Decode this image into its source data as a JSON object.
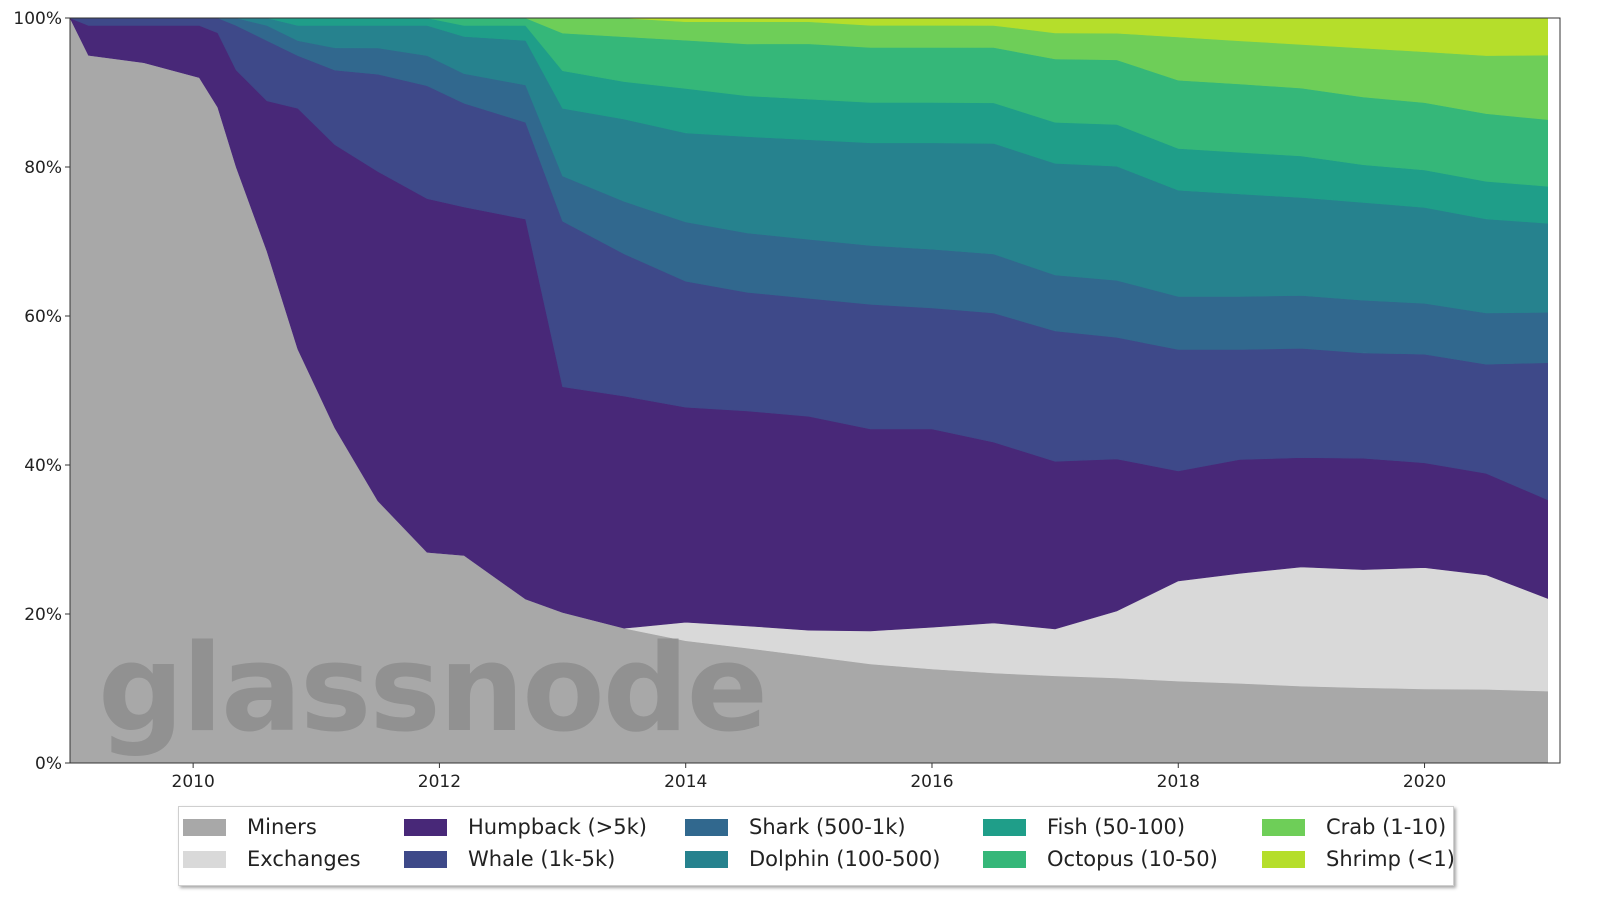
{
  "chart_data": {
    "type": "area",
    "stacked": "percent",
    "watermark": "glassnode",
    "x_ticks": [
      "2010",
      "2012",
      "2014",
      "2016",
      "2018",
      "2020"
    ],
    "y_ticks": [
      "0%",
      "20%",
      "40%",
      "60%",
      "80%",
      "100%"
    ],
    "ylim": [
      0,
      100
    ],
    "xlim": [
      2009.0,
      2021.1
    ],
    "legend_position": "bottom",
    "x": [
      2009.0,
      2009.15,
      2009.6,
      2010.05,
      2010.2,
      2010.35,
      2010.6,
      2010.85,
      2011.15,
      2011.5,
      2011.9,
      2012.2,
      2012.7,
      2013.0,
      2013.5,
      2014.0,
      2014.5,
      2015.0,
      2015.5,
      2016.0,
      2016.5,
      2017.0,
      2017.5,
      2018.0,
      2018.5,
      2019.0,
      2019.5,
      2020.0,
      2020.5,
      2021.0
    ],
    "series": [
      {
        "name": "Miners",
        "color": "#a8a8a8",
        "values": [
          97,
          95,
          94,
          92,
          88,
          80,
          68,
          55,
          45,
          35,
          28,
          28,
          22,
          20,
          18,
          16.5,
          15.5,
          14.5,
          13.5,
          12.8,
          12.2,
          11.7,
          11.2,
          10.8,
          10.5,
          10.2,
          10,
          9.9,
          9.8,
          9.7
        ]
      },
      {
        "name": "Exchanges",
        "color": "#d9d9d9",
        "values": [
          0,
          0,
          0,
          0,
          0,
          0,
          0,
          0,
          0,
          0,
          0,
          0,
          0,
          0,
          0,
          2.5,
          3,
          3.5,
          4.5,
          5.7,
          6.8,
          6.3,
          8.8,
          13.2,
          14.5,
          15.8,
          15.7,
          16.2,
          15.2,
          12.5
        ]
      },
      {
        "name": "Humpback (>5k)",
        "color": "#482878",
        "values": [
          0,
          4,
          5,
          7,
          10,
          13,
          20,
          32,
          38,
          44,
          47,
          47,
          51,
          30,
          31,
          29,
          29,
          29,
          27.5,
          27,
          24.5,
          22.5,
          20,
          14.5,
          15,
          14.5,
          14.8,
          14,
          13.5,
          13.3
        ]
      },
      {
        "name": "Whale (1k-5k)",
        "color": "#3e4989",
        "values": [
          0,
          1,
          1,
          1,
          2,
          6,
          8,
          7,
          10,
          13,
          15,
          14,
          13,
          22,
          19,
          17,
          16,
          16,
          17,
          16.5,
          17.5,
          17.5,
          16,
          16,
          14.5,
          14.5,
          14,
          14.5,
          14.5,
          18.5
        ]
      },
      {
        "name": "Shark (500-1k)",
        "color": "#31688e",
        "values": [
          0,
          0,
          0,
          0,
          0,
          1,
          2,
          2,
          3,
          3.5,
          4,
          4,
          5,
          6,
          7,
          8,
          8,
          8,
          8,
          8,
          8,
          7.5,
          7.5,
          7,
          7,
          7,
          7,
          6.8,
          6.8,
          6.8
        ]
      },
      {
        "name": "Dolphin (100-500)",
        "color": "#26828e",
        "values": [
          0,
          0,
          0,
          0,
          0,
          0,
          1,
          2,
          3,
          3,
          4,
          5,
          6,
          9,
          11,
          12,
          13,
          13.5,
          14,
          14.5,
          15,
          15,
          15,
          14,
          13.5,
          13,
          13,
          12.8,
          12.5,
          12
        ]
      },
      {
        "name": "Fish (50-100)",
        "color": "#1f9e89",
        "values": [
          0,
          0,
          0,
          0,
          0,
          0,
          0,
          1,
          1,
          1,
          1,
          1.5,
          2,
          5,
          5,
          6,
          5.5,
          5.5,
          5.5,
          5.5,
          5.5,
          5.5,
          5.5,
          5.5,
          5.5,
          5.5,
          5,
          5,
          5,
          5
        ]
      },
      {
        "name": "Octopus (10-50)",
        "color": "#35b779",
        "values": [
          0,
          0,
          0,
          0,
          0,
          0,
          0,
          0,
          0,
          0,
          0,
          1,
          1,
          5,
          6,
          6.5,
          7,
          7.5,
          7.5,
          7.5,
          7.5,
          8.5,
          8.5,
          9,
          9,
          9,
          9,
          9,
          9,
          9
        ]
      },
      {
        "name": "Crab (1-10)",
        "color": "#6ece58",
        "values": [
          0,
          0,
          0,
          0,
          0,
          0,
          0,
          0,
          0,
          0,
          0,
          0,
          0,
          2,
          2.5,
          2.5,
          3,
          3,
          3,
          3,
          3,
          3.5,
          3.5,
          5.7,
          5.7,
          5.8,
          6.5,
          6.8,
          7.7,
          8.7
        ]
      },
      {
        "name": "Shrimp (<1)",
        "color": "#b5de2b",
        "values": [
          0,
          0,
          0,
          0,
          0,
          0,
          0,
          0,
          0,
          0,
          0,
          0,
          0,
          0,
          0,
          0.5,
          0.5,
          0.5,
          1,
          1,
          1,
          2,
          2,
          2.5,
          3,
          3.5,
          4,
          4.5,
          5,
          5
        ]
      }
    ]
  }
}
